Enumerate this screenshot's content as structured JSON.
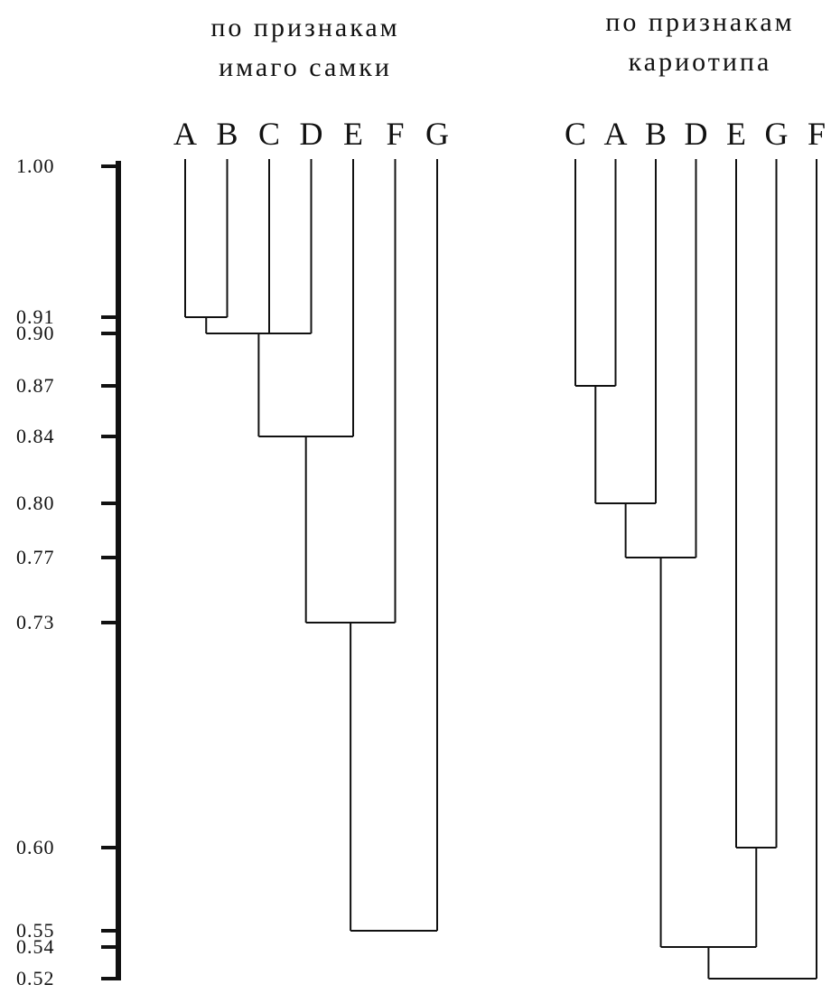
{
  "axis": {
    "ticks": [
      {
        "value": 1.0,
        "label": "1.00"
      },
      {
        "value": 0.91,
        "label": "0.91"
      },
      {
        "value": 0.9,
        "label": "0.90"
      },
      {
        "value": 0.87,
        "label": "0.87"
      },
      {
        "value": 0.84,
        "label": "0.84"
      },
      {
        "value": 0.8,
        "label": "0.80"
      },
      {
        "value": 0.77,
        "label": "0.77"
      },
      {
        "value": 0.73,
        "label": "0.73"
      },
      {
        "value": 0.6,
        "label": "0.60"
      },
      {
        "value": 0.55,
        "label": "0.55"
      },
      {
        "value": 0.54,
        "label": "0.54"
      },
      {
        "value": 0.52,
        "label": "0.52"
      }
    ]
  },
  "dendrograms": [
    {
      "title_line1": "по признакам",
      "title_line2": "имаго самки",
      "leaves": [
        "A",
        "B",
        "C",
        "D",
        "E",
        "F",
        "G"
      ],
      "merges": [
        {
          "children": [
            "A",
            "B"
          ],
          "similarity": 0.91
        },
        {
          "children": [
            "AB",
            "C",
            "D"
          ],
          "similarity": 0.9
        },
        {
          "children": [
            "ABCD",
            "E"
          ],
          "similarity": 0.84
        },
        {
          "children": [
            "ABCDE",
            "F"
          ],
          "similarity": 0.73
        },
        {
          "children": [
            "ABCDEF",
            "G"
          ],
          "similarity": 0.55
        }
      ]
    },
    {
      "title_line1": "по признакам",
      "title_line2": "кариотипа",
      "leaves": [
        "C",
        "A",
        "B",
        "D",
        "E",
        "G",
        "F"
      ],
      "merges": [
        {
          "children": [
            "C",
            "A"
          ],
          "similarity": 0.87
        },
        {
          "children": [
            "CA",
            "B"
          ],
          "similarity": 0.8
        },
        {
          "children": [
            "CAB",
            "D"
          ],
          "similarity": 0.77
        },
        {
          "children": [
            "E",
            "G"
          ],
          "similarity": 0.6
        },
        {
          "children": [
            "CABD",
            "EG"
          ],
          "similarity": 0.54
        },
        {
          "children": [
            "CABDEG",
            "F"
          ],
          "similarity": 0.52
        }
      ]
    }
  ]
}
